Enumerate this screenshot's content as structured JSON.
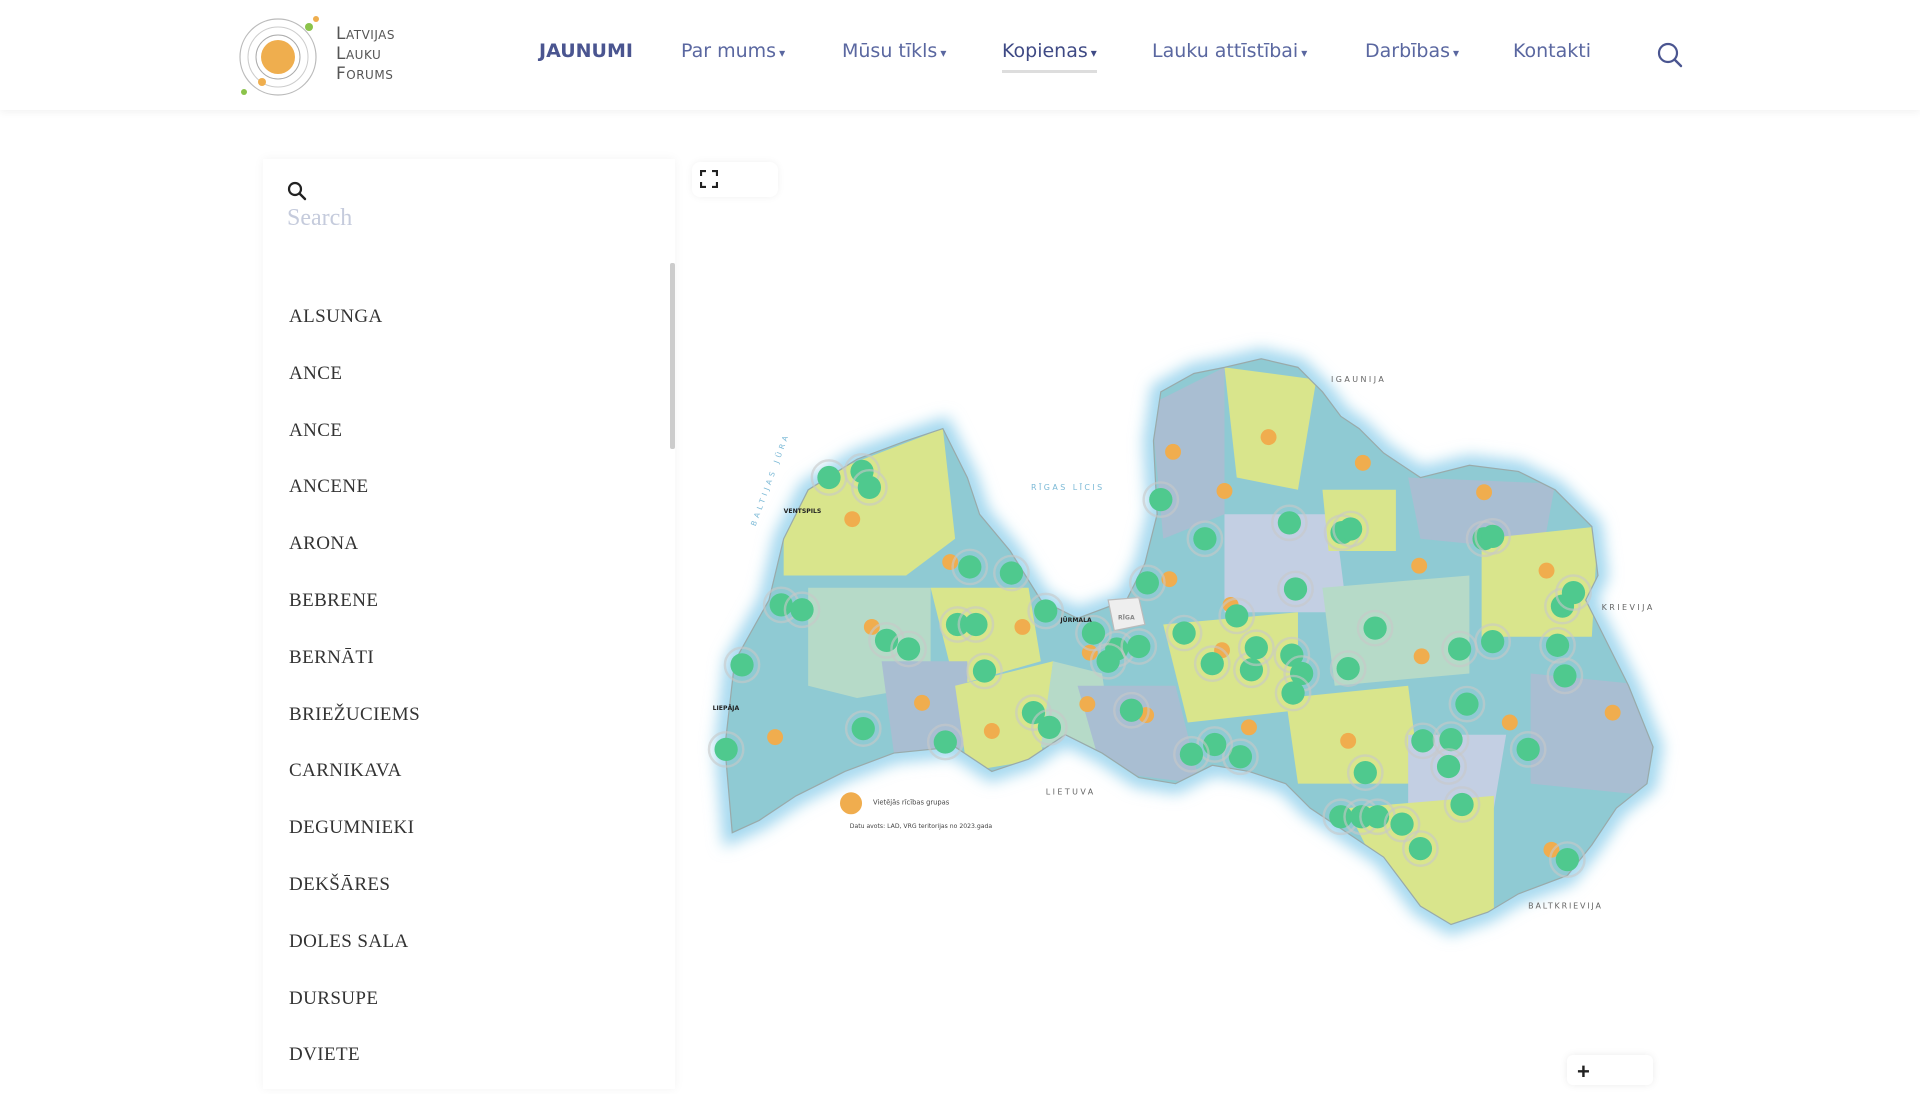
{
  "header": {
    "logo_lines": [
      "Latvijas",
      "Lauku",
      "Forums"
    ],
    "nav": [
      {
        "label": "JAUNUMI",
        "dropdown": false
      },
      {
        "label": "Par mums",
        "dropdown": true
      },
      {
        "label": "Mūsu tīkls",
        "dropdown": true
      },
      {
        "label": "Kopienas",
        "dropdown": true,
        "active": true
      },
      {
        "label": "Lauku attīstībai",
        "dropdown": true
      },
      {
        "label": "Darbības",
        "dropdown": true
      },
      {
        "label": "Kontakti",
        "dropdown": false
      }
    ],
    "chevron": "⌄",
    "search_icon": "search-icon"
  },
  "sidebar": {
    "search_placeholder": "Search",
    "search_value": "",
    "items": [
      "ALSUNGA",
      "ANCE",
      "ANCE",
      "ANCENE",
      "ARONA",
      "BEBRENE",
      "BERNĀTI",
      "BRIEŽUCIEMS",
      "CARNIKAVA",
      "DEGUMNIEKI",
      "DEKŠĀRES",
      "DOLES SALA",
      "DURSUPE",
      "DVIETE"
    ]
  },
  "map": {
    "fullscreen_icon": "fullscreen-icon",
    "zoom_in_label": "+",
    "labels": {
      "sea": "BALTIJAS JŪRA",
      "gulf": "RĪGAS LĪCIS",
      "estonia": "IGAUNIJA",
      "russia": "KRIEVIJA",
      "lithuania": "LIETUVA",
      "belarus": "BALTKRIEVIJA",
      "ventspils": "VENTSPILS",
      "liepaja": "LIEPĀJA",
      "jurmala": "JŪRMALA",
      "riga": "RĪGA"
    },
    "legend_label": "Vietējās rīcības grupas",
    "source_note": "Datu avots: LAD, VRG teritorijas no 2023.gada",
    "colors": {
      "community": "#4fc98e",
      "lag": "#f0ad4e",
      "water": "#bfe3f2",
      "region_teal": "#8fcad3",
      "region_yellow": "#d9e58c",
      "region_grey": "#a9bed2",
      "region_mint": "#b6dac8"
    }
  }
}
